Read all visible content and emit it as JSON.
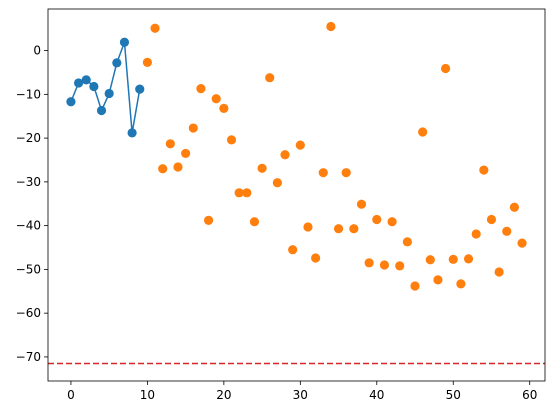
{
  "chart_data": {
    "type": "scatter",
    "title": "",
    "xlabel": "",
    "ylabel": "",
    "xlim": [
      -3,
      62
    ],
    "ylim": [
      -75.5,
      9.5
    ],
    "xticks": [
      0,
      10,
      20,
      30,
      40,
      50,
      60
    ],
    "yticks": [
      0,
      -10,
      -20,
      -30,
      -40,
      -50,
      -60,
      -70
    ],
    "grid": false,
    "legend": "none",
    "series": [
      {
        "kind": "line+markers",
        "color": "#1f77b4",
        "x": [
          0,
          1,
          2,
          3,
          4,
          5,
          6,
          7,
          8,
          9
        ],
        "y": [
          -11.7,
          -7.4,
          -6.7,
          -8.2,
          -13.7,
          -9.8,
          -2.8,
          1.9,
          -18.8,
          -8.8
        ]
      },
      {
        "kind": "markers",
        "color": "#ff7f0e",
        "x": [
          10,
          11,
          12,
          13,
          14,
          15,
          16,
          17,
          18,
          19,
          20,
          21,
          22,
          23,
          24,
          25,
          26,
          27,
          28,
          29,
          30,
          31,
          32,
          33,
          34,
          35,
          36,
          37,
          38,
          39,
          40,
          41,
          42,
          43,
          44,
          45,
          46,
          47,
          48,
          49,
          50,
          51,
          52,
          53,
          54,
          55,
          56,
          57,
          58,
          59
        ],
        "y": [
          -2.7,
          5.1,
          -27.0,
          -21.3,
          -26.6,
          -23.5,
          -17.7,
          -8.7,
          -38.8,
          -11.0,
          -13.2,
          -20.4,
          -32.5,
          -32.5,
          -39.1,
          -26.9,
          -6.2,
          -30.2,
          -23.8,
          -45.5,
          -21.6,
          -40.3,
          -47.4,
          -27.9,
          5.5,
          -40.7,
          -27.9,
          -40.7,
          -35.1,
          -48.5,
          -38.6,
          -49.0,
          -39.1,
          -49.2,
          -43.7,
          -53.8,
          -18.6,
          -47.8,
          -52.4,
          -4.1,
          -47.7,
          -53.3,
          -47.6,
          -41.9,
          -27.3,
          -38.6,
          -50.6,
          -41.3,
          -35.8,
          -44.0
        ]
      }
    ],
    "hline": {
      "y": -71.5,
      "color": "#d62728",
      "style": "dashed"
    }
  }
}
